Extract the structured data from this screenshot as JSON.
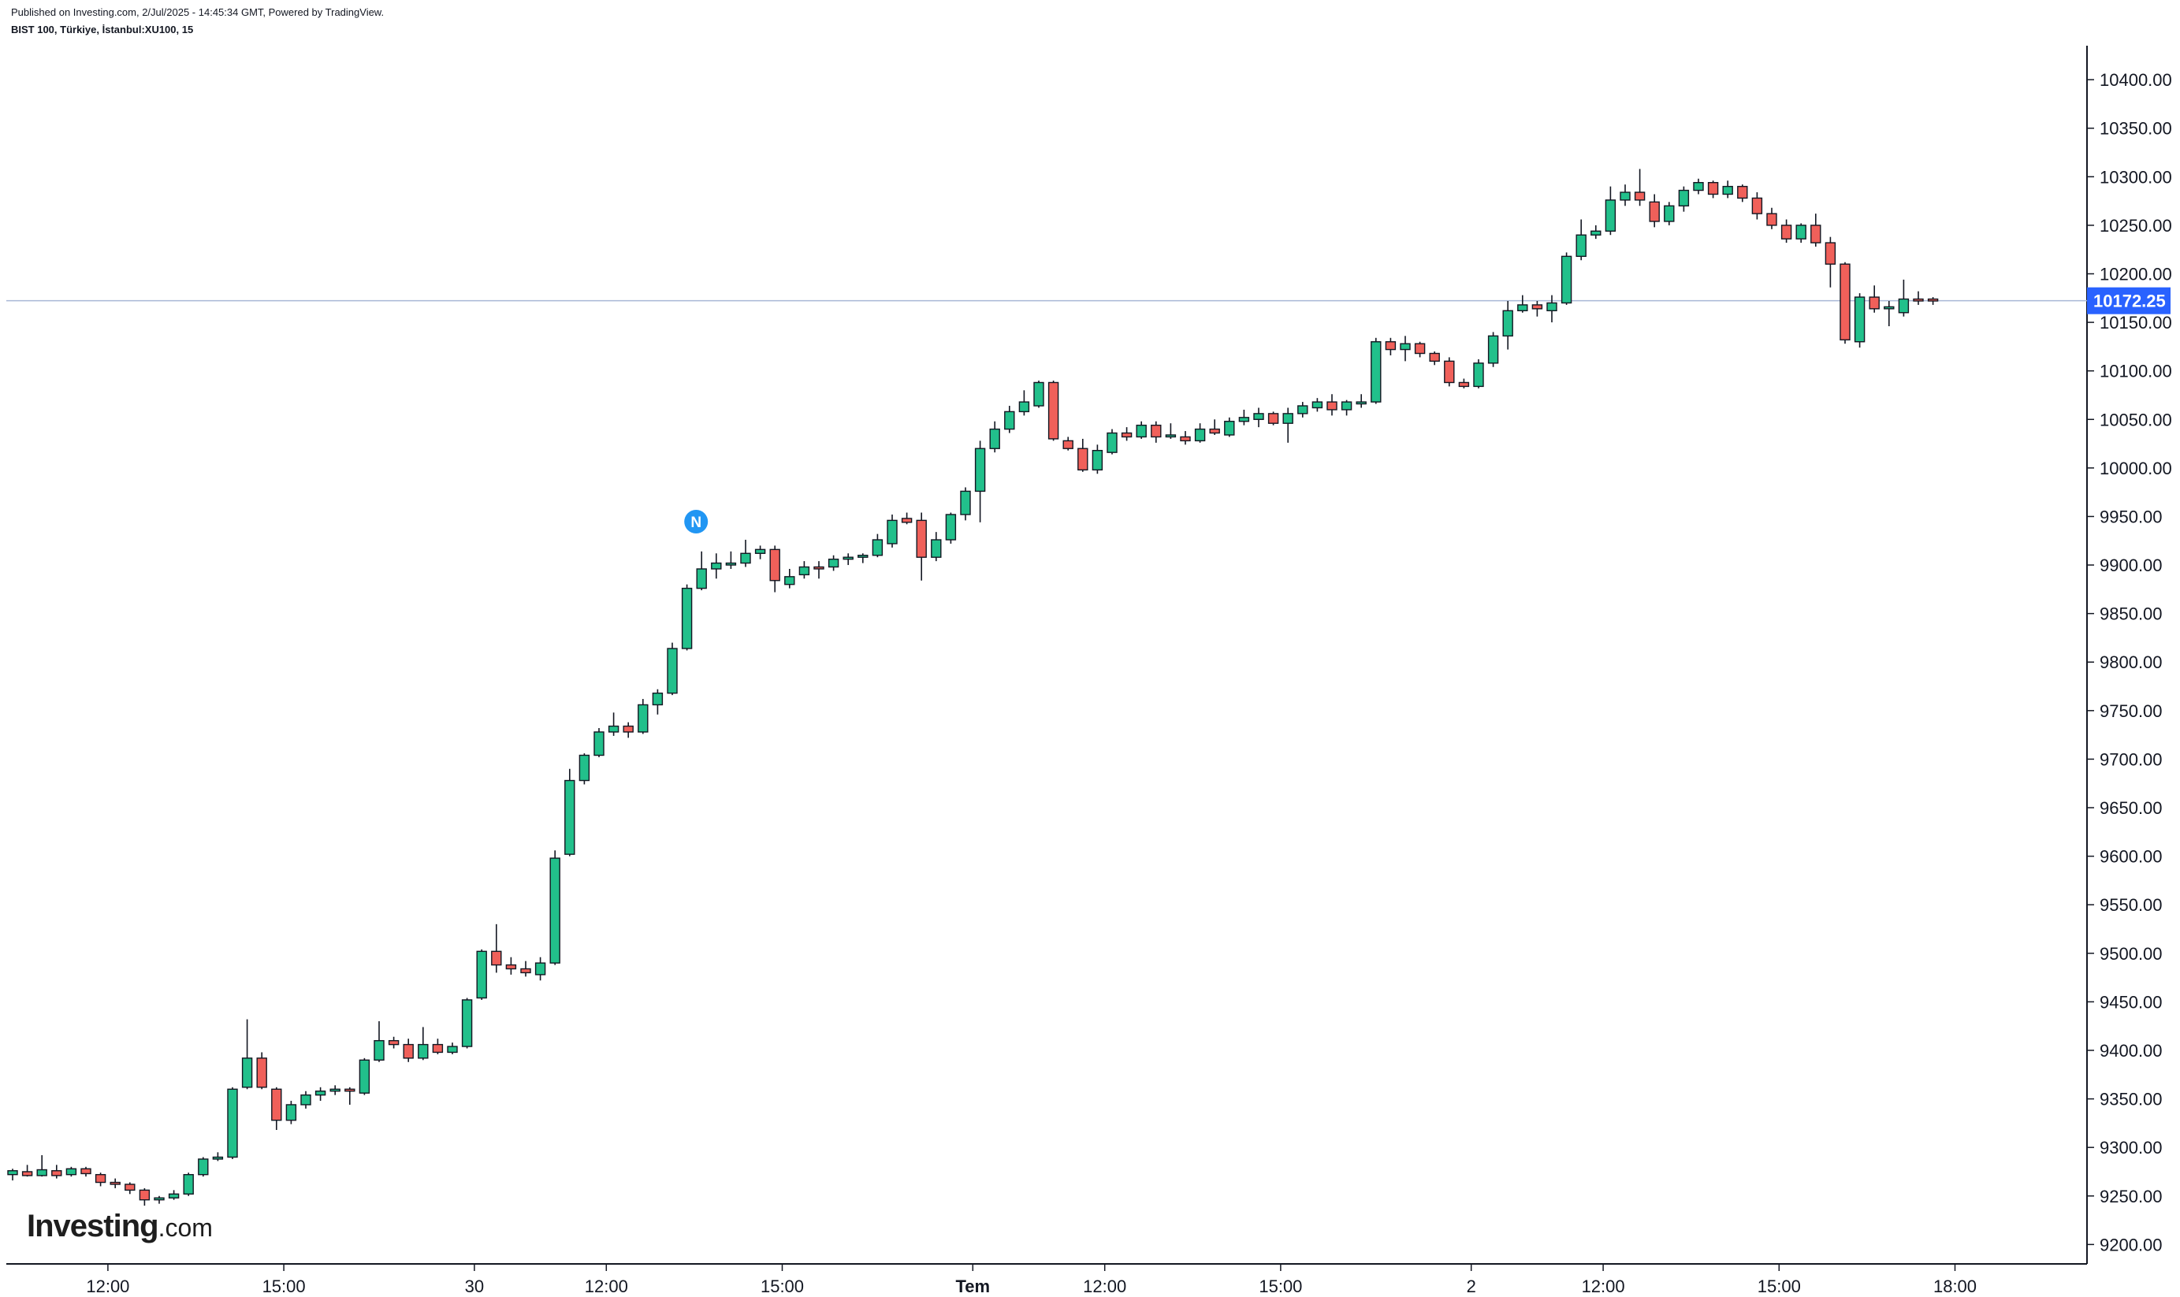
{
  "header": {
    "published": "Published on Investing.com, 2/Jul/2025 - 14:45:34 GMT, Powered by TradingView.",
    "symbol": "BIST 100, Türkiye, İstanbul:XU100, 15"
  },
  "logo": {
    "brand": "Investing",
    "suffix": ".com"
  },
  "colors": {
    "up": "#22c08b",
    "down": "#f0605a",
    "wick": "#131722",
    "price_line": "#a9b8d6",
    "price_tag": "#2962ff",
    "event_marker": "#2196f3"
  },
  "chart_data": {
    "type": "candlestick",
    "interval": "15",
    "ylim": [
      9180,
      10435
    ],
    "y_ticks": [
      "9200.00",
      "9250.00",
      "9300.00",
      "9350.00",
      "9400.00",
      "9450.00",
      "9500.00",
      "9550.00",
      "9600.00",
      "9650.00",
      "9700.00",
      "9750.00",
      "9800.00",
      "9850.00",
      "9900.00",
      "9950.00",
      "10000.00",
      "10050.00",
      "10100.00",
      "10150.00",
      "10200.00",
      "10250.00",
      "10300.00",
      "10350.00",
      "10400.00"
    ],
    "x_ticks": [
      {
        "label": "12:00",
        "bar": 6.5,
        "bold": false
      },
      {
        "label": "15:00",
        "bar": 18.5,
        "bold": false
      },
      {
        "label": "30",
        "bar": 31.5,
        "bold": false
      },
      {
        "label": "12:00",
        "bar": 40.5,
        "bold": false
      },
      {
        "label": "15:00",
        "bar": 52.5,
        "bold": false
      },
      {
        "label": "Tem",
        "bar": 65.5,
        "bold": true
      },
      {
        "label": "12:00",
        "bar": 74.5,
        "bold": false
      },
      {
        "label": "15:00",
        "bar": 86.5,
        "bold": false
      },
      {
        "label": "2",
        "bar": 99.5,
        "bold": false
      },
      {
        "label": "12:00",
        "bar": 108.5,
        "bold": false
      },
      {
        "label": "15:00",
        "bar": 120.5,
        "bold": false
      },
      {
        "label": "18:00",
        "bar": 132.5,
        "bold": false
      }
    ],
    "last_price": "10172.25",
    "last_value": 10172.25,
    "event_marker": {
      "label": "N",
      "bar": 47
    },
    "candles": [
      [
        9272,
        9278,
        9266,
        9276
      ],
      [
        9275,
        9282,
        9270,
        9271
      ],
      [
        9271,
        9292,
        9270,
        9277
      ],
      [
        9276,
        9282,
        9268,
        9271
      ],
      [
        9272,
        9280,
        9270,
        9278
      ],
      [
        9278,
        9280,
        9270,
        9273
      ],
      [
        9272,
        9274,
        9260,
        9264
      ],
      [
        9264,
        9268,
        9258,
        9262
      ],
      [
        9262,
        9264,
        9252,
        9256
      ],
      [
        9256,
        9258,
        9240,
        9246
      ],
      [
        9246,
        9250,
        9242,
        9248
      ],
      [
        9248,
        9256,
        9246,
        9252
      ],
      [
        9252,
        9274,
        9250,
        9272
      ],
      [
        9272,
        9290,
        9270,
        9288
      ],
      [
        9288,
        9295,
        9286,
        9290
      ],
      [
        9290,
        9362,
        9288,
        9360
      ],
      [
        9362,
        9432,
        9360,
        9392
      ],
      [
        9392,
        9398,
        9360,
        9362
      ],
      [
        9360,
        9362,
        9318,
        9328
      ],
      [
        9328,
        9348,
        9324,
        9344
      ],
      [
        9344,
        9358,
        9340,
        9354
      ],
      [
        9354,
        9362,
        9348,
        9358
      ],
      [
        9358,
        9364,
        9354,
        9360
      ],
      [
        9360,
        9362,
        9344,
        9358
      ],
      [
        9356,
        9392,
        9354,
        9390
      ],
      [
        9390,
        9430,
        9388,
        9410
      ],
      [
        9410,
        9414,
        9402,
        9406
      ],
      [
        9406,
        9412,
        9388,
        9392
      ],
      [
        9392,
        9424,
        9390,
        9406
      ],
      [
        9406,
        9412,
        9396,
        9398
      ],
      [
        9398,
        9408,
        9396,
        9404
      ],
      [
        9404,
        9454,
        9402,
        9452
      ],
      [
        9454,
        9504,
        9452,
        9502
      ],
      [
        9502,
        9530,
        9480,
        9488
      ],
      [
        9488,
        9496,
        9478,
        9484
      ],
      [
        9484,
        9492,
        9476,
        9480
      ],
      [
        9478,
        9496,
        9472,
        9490
      ],
      [
        9490,
        9606,
        9488,
        9598
      ],
      [
        9602,
        9690,
        9600,
        9678
      ],
      [
        9678,
        9706,
        9674,
        9704
      ],
      [
        9704,
        9732,
        9702,
        9728
      ],
      [
        9728,
        9748,
        9724,
        9734
      ],
      [
        9734,
        9738,
        9722,
        9728
      ],
      [
        9728,
        9762,
        9726,
        9756
      ],
      [
        9756,
        9772,
        9746,
        9768
      ],
      [
        9768,
        9820,
        9766,
        9814
      ],
      [
        9814,
        9880,
        9812,
        9876
      ],
      [
        9876,
        9914,
        9874,
        9896
      ],
      [
        9896,
        9912,
        9886,
        9902
      ],
      [
        9900,
        9914,
        9896,
        9902
      ],
      [
        9902,
        9926,
        9898,
        9912
      ],
      [
        9912,
        9920,
        9906,
        9916
      ],
      [
        9916,
        9920,
        9872,
        9884
      ],
      [
        9880,
        9896,
        9876,
        9888
      ],
      [
        9890,
        9904,
        9886,
        9898
      ],
      [
        9898,
        9904,
        9886,
        9896
      ],
      [
        9898,
        9910,
        9894,
        9906
      ],
      [
        9906,
        9912,
        9900,
        9908
      ],
      [
        9908,
        9912,
        9902,
        9910
      ],
      [
        9910,
        9932,
        9908,
        9926
      ],
      [
        9922,
        9952,
        9918,
        9946
      ],
      [
        9948,
        9954,
        9942,
        9944
      ],
      [
        9946,
        9954,
        9884,
        9908
      ],
      [
        9908,
        9934,
        9904,
        9926
      ],
      [
        9926,
        9954,
        9922,
        9952
      ],
      [
        9952,
        9980,
        9946,
        9976
      ],
      [
        9976,
        10028,
        9944,
        10020
      ],
      [
        10020,
        10048,
        10016,
        10040
      ],
      [
        10040,
        10064,
        10036,
        10058
      ],
      [
        10058,
        10080,
        10054,
        10068
      ],
      [
        10064,
        10090,
        10062,
        10088
      ],
      [
        10088,
        10090,
        10028,
        10030
      ],
      [
        10028,
        10032,
        10018,
        10020
      ],
      [
        10020,
        10030,
        9996,
        9998
      ],
      [
        9998,
        10024,
        9994,
        10018
      ],
      [
        10016,
        10040,
        10014,
        10036
      ],
      [
        10036,
        10042,
        10028,
        10032
      ],
      [
        10032,
        10048,
        10030,
        10044
      ],
      [
        10044,
        10048,
        10026,
        10032
      ],
      [
        10032,
        10046,
        10030,
        10034
      ],
      [
        10032,
        10038,
        10024,
        10028
      ],
      [
        10028,
        10046,
        10026,
        10040
      ],
      [
        10040,
        10050,
        10034,
        10036
      ],
      [
        10034,
        10052,
        10032,
        10048
      ],
      [
        10048,
        10060,
        10044,
        10052
      ],
      [
        10050,
        10062,
        10042,
        10056
      ],
      [
        10056,
        10058,
        10044,
        10046
      ],
      [
        10046,
        10062,
        10026,
        10056
      ],
      [
        10056,
        10068,
        10052,
        10064
      ],
      [
        10062,
        10072,
        10058,
        10068
      ],
      [
        10068,
        10076,
        10054,
        10060
      ],
      [
        10060,
        10070,
        10054,
        10068
      ],
      [
        10066,
        10076,
        10062,
        10068
      ],
      [
        10068,
        10134,
        10066,
        10130
      ],
      [
        10130,
        10134,
        10116,
        10122
      ],
      [
        10122,
        10136,
        10110,
        10128
      ],
      [
        10128,
        10130,
        10114,
        10118
      ],
      [
        10118,
        10120,
        10106,
        10110
      ],
      [
        10110,
        10114,
        10084,
        10088
      ],
      [
        10088,
        10092,
        10082,
        10084
      ],
      [
        10084,
        10112,
        10082,
        10108
      ],
      [
        10108,
        10140,
        10104,
        10136
      ],
      [
        10136,
        10172,
        10122,
        10162
      ],
      [
        10162,
        10178,
        10160,
        10168
      ],
      [
        10168,
        10172,
        10156,
        10164
      ],
      [
        10162,
        10178,
        10150,
        10170
      ],
      [
        10170,
        10222,
        10168,
        10218
      ],
      [
        10218,
        10256,
        10214,
        10240
      ],
      [
        10240,
        10250,
        10236,
        10244
      ],
      [
        10244,
        10290,
        10240,
        10276
      ],
      [
        10276,
        10292,
        10270,
        10284
      ],
      [
        10284,
        10308,
        10270,
        10276
      ],
      [
        10274,
        10282,
        10248,
        10254
      ],
      [
        10254,
        10274,
        10250,
        10270
      ],
      [
        10270,
        10290,
        10264,
        10286
      ],
      [
        10286,
        10298,
        10282,
        10294
      ],
      [
        10294,
        10296,
        10278,
        10282
      ],
      [
        10282,
        10296,
        10278,
        10290
      ],
      [
        10290,
        10292,
        10274,
        10278
      ],
      [
        10278,
        10284,
        10256,
        10262
      ],
      [
        10262,
        10268,
        10246,
        10250
      ],
      [
        10250,
        10256,
        10232,
        10236
      ],
      [
        10236,
        10252,
        10232,
        10250
      ],
      [
        10250,
        10262,
        10228,
        10232
      ],
      [
        10232,
        10238,
        10186,
        10210
      ],
      [
        10210,
        10212,
        10128,
        10132
      ],
      [
        10130,
        10180,
        10124,
        10176
      ],
      [
        10176,
        10188,
        10160,
        10164
      ],
      [
        10164,
        10172,
        10146,
        10166
      ],
      [
        10160,
        10194,
        10156,
        10174
      ],
      [
        10174,
        10182,
        10168,
        10172
      ],
      [
        10174,
        10176,
        10168,
        10172
      ]
    ]
  }
}
